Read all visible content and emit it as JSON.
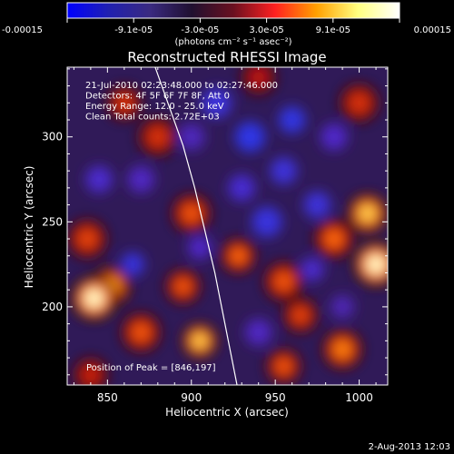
{
  "chart_data": {
    "type": "heatmap",
    "title": "Reconstructed RHESSI Image",
    "xlabel": "Heliocentric X (arcsec)",
    "ylabel": "Heliocentric Y (arcsec)",
    "xlim": [
      826,
      1017
    ],
    "ylim": [
      154,
      341
    ],
    "x_ticks": [
      "850",
      "900",
      "950",
      "1000"
    ],
    "y_ticks": [
      "200",
      "250",
      "300"
    ],
    "x_tick_values": [
      850,
      900,
      950,
      1000
    ],
    "y_tick_values": [
      200,
      250,
      300
    ],
    "colorbar": {
      "unit_label": "(photons cm⁻² s⁻¹ asec⁻²)",
      "range": [
        -0.00015,
        0.00015
      ],
      "tick_labels": [
        "-0.00015",
        "-9.1e-05",
        "-3.0e-05",
        "3.0e-05",
        "9.1e-05",
        "0.00015"
      ],
      "colors": [
        "#0000ff",
        "#2020b0",
        "#3a2a80",
        "#201030",
        "#6a1020",
        "#ff2020",
        "#ffa000",
        "#ffff80",
        "#ffffff"
      ]
    },
    "annotations": [
      "21-Jul-2010 02:23:48.000 to 02:27:46.000",
      "Detectors: 4F 5F 6F 7F 8F, Att 0",
      "Energy Range: 12.0 - 25.0 keV",
      "Clean     Total counts: 2.72E+03"
    ],
    "peak_label": "Position of Peak = [846,197]",
    "limb_curve": [
      [
        877,
        345
      ],
      [
        886,
        320
      ],
      [
        895,
        295
      ],
      [
        902,
        270
      ],
      [
        908,
        245
      ],
      [
        914,
        220
      ],
      [
        919,
        195
      ],
      [
        924,
        170
      ],
      [
        928,
        150
      ]
    ],
    "blobs": [
      {
        "x": 842,
        "y": 205,
        "v": 1.0,
        "s": 10
      },
      {
        "x": 852,
        "y": 212,
        "v": 0.75,
        "s": 9
      },
      {
        "x": 838,
        "y": 240,
        "v": 0.5,
        "s": 9
      },
      {
        "x": 870,
        "y": 185,
        "v": 0.55,
        "s": 9
      },
      {
        "x": 895,
        "y": 212,
        "v": 0.55,
        "s": 8
      },
      {
        "x": 905,
        "y": 180,
        "v": 0.85,
        "s": 8
      },
      {
        "x": 928,
        "y": 230,
        "v": 0.6,
        "s": 8
      },
      {
        "x": 900,
        "y": 255,
        "v": 0.55,
        "s": 9
      },
      {
        "x": 880,
        "y": 300,
        "v": 0.45,
        "s": 9
      },
      {
        "x": 860,
        "y": 320,
        "v": 0.45,
        "s": 8
      },
      {
        "x": 955,
        "y": 215,
        "v": 0.55,
        "s": 9
      },
      {
        "x": 965,
        "y": 195,
        "v": 0.5,
        "s": 8
      },
      {
        "x": 1010,
        "y": 225,
        "v": 1.0,
        "s": 10
      },
      {
        "x": 1005,
        "y": 255,
        "v": 0.85,
        "s": 9
      },
      {
        "x": 985,
        "y": 240,
        "v": 0.6,
        "s": 9
      },
      {
        "x": 990,
        "y": 175,
        "v": 0.65,
        "s": 9
      },
      {
        "x": 955,
        "y": 165,
        "v": 0.55,
        "s": 8
      },
      {
        "x": 1000,
        "y": 320,
        "v": 0.45,
        "s": 9
      },
      {
        "x": 940,
        "y": 335,
        "v": 0.35,
        "s": 8
      },
      {
        "x": 840,
        "y": 160,
        "v": 0.4,
        "s": 8
      },
      {
        "x": 915,
        "y": 320,
        "v": -0.7,
        "s": 9
      },
      {
        "x": 935,
        "y": 300,
        "v": -0.85,
        "s": 9
      },
      {
        "x": 955,
        "y": 280,
        "v": -0.7,
        "s": 8
      },
      {
        "x": 960,
        "y": 310,
        "v": -0.8,
        "s": 8
      },
      {
        "x": 945,
        "y": 250,
        "v": -0.75,
        "s": 9
      },
      {
        "x": 975,
        "y": 260,
        "v": -0.7,
        "s": 8
      },
      {
        "x": 930,
        "y": 270,
        "v": -0.6,
        "s": 8
      },
      {
        "x": 985,
        "y": 300,
        "v": -0.5,
        "s": 8
      },
      {
        "x": 865,
        "y": 225,
        "v": -0.75,
        "s": 7
      },
      {
        "x": 905,
        "y": 235,
        "v": -0.5,
        "s": 7
      },
      {
        "x": 845,
        "y": 275,
        "v": -0.55,
        "s": 8
      },
      {
        "x": 870,
        "y": 275,
        "v": -0.45,
        "s": 8
      },
      {
        "x": 940,
        "y": 185,
        "v": -0.45,
        "s": 8
      },
      {
        "x": 972,
        "y": 222,
        "v": -0.55,
        "s": 7
      },
      {
        "x": 900,
        "y": 300,
        "v": -0.4,
        "s": 8
      },
      {
        "x": 990,
        "y": 200,
        "v": -0.35,
        "s": 7
      }
    ]
  },
  "footer": {
    "timestamp": "2-Aug-2013 12:03"
  }
}
